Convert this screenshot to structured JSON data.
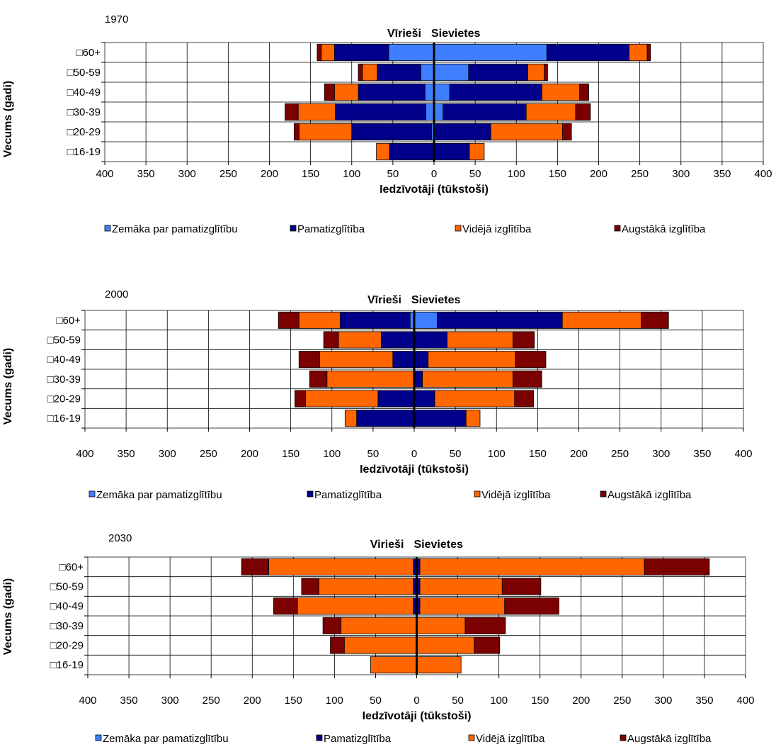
{
  "chart_data": [
    {
      "type": "bar",
      "title": "1970",
      "left_label": "Vīrieši",
      "right_label": "Sievietes",
      "xlabel": "Iedzīvotāji (tūkstoši)",
      "ylabel": "Vecums (gadi)",
      "xlim": [
        -400,
        400
      ],
      "x_ticks": [
        "400",
        "350",
        "300",
        "250",
        "200",
        "150",
        "100",
        "50",
        "0",
        "50",
        "100",
        "150",
        "200",
        "250",
        "300",
        "350",
        "400"
      ],
      "categories": [
        "60+",
        "50-59",
        "40-49",
        "30-39",
        "20-29",
        "16-19"
      ],
      "series": [
        {
          "name": "Zemāka par pamatizglītību",
          "men": [
            55,
            16,
            11,
            10,
            3,
            0
          ],
          "women": [
            137,
            42,
            19,
            11,
            2,
            0
          ]
        },
        {
          "name": "Pamatizglītība",
          "men": [
            66,
            53,
            81,
            110,
            97,
            54
          ],
          "women": [
            100,
            72,
            112,
            101,
            67,
            43
          ]
        },
        {
          "name": "Vidējā izglītība",
          "men": [
            16,
            18,
            29,
            45,
            64,
            16
          ],
          "women": [
            22,
            20,
            46,
            60,
            87,
            18
          ]
        },
        {
          "name": "Augstākā izglītība",
          "men": [
            5,
            5,
            12,
            16,
            6,
            0
          ],
          "women": [
            4,
            4,
            11,
            18,
            11,
            0
          ]
        }
      ]
    },
    {
      "type": "bar",
      "title": "2000",
      "left_label": "Vīrieši",
      "right_label": "Sievietes",
      "xlabel": "Iedzīvotāji (tūkstoši)",
      "ylabel": "Vecums (gadi)",
      "xlim": [
        -400,
        400
      ],
      "x_ticks": [
        "400",
        "350",
        "300",
        "250",
        "200",
        "150",
        "100",
        "50",
        "0",
        "50",
        "100",
        "150",
        "200",
        "250",
        "300",
        "350",
        "400"
      ],
      "categories": [
        "60+",
        "50-59",
        "40-49",
        "30-39",
        "20-29",
        "16-19"
      ],
      "series": [
        {
          "name": "Zemāka par pamatizglītību",
          "men": [
            5,
            0,
            0,
            0,
            0,
            0
          ],
          "women": [
            28,
            0,
            0,
            0,
            0,
            0
          ]
        },
        {
          "name": "Pamatizglītība",
          "men": [
            85,
            40,
            26,
            0,
            44,
            70
          ],
          "women": [
            152,
            40,
            17,
            10,
            25,
            63
          ]
        },
        {
          "name": "Vidējā izglītība",
          "men": [
            50,
            52,
            89,
            106,
            88,
            14
          ],
          "women": [
            96,
            80,
            106,
            110,
            97,
            17
          ]
        },
        {
          "name": "Augstākā izglītība",
          "men": [
            25,
            18,
            25,
            21,
            13,
            0
          ],
          "women": [
            33,
            26,
            37,
            35,
            23,
            0
          ]
        }
      ]
    },
    {
      "type": "bar",
      "title": "2030",
      "left_label": "Virieši",
      "right_label": "Sievietes",
      "xlabel": "Iedzīvotāji (tūkstoši)",
      "ylabel": "Vecums (gadi)",
      "xlim": [
        -400,
        400
      ],
      "x_ticks": [
        "400",
        "350",
        "300",
        "250",
        "200",
        "150",
        "100",
        "50",
        "0",
        "50",
        "100",
        "150",
        "200",
        "250",
        "300",
        "350",
        "400"
      ],
      "categories": [
        "60+",
        "50-59",
        "40-49",
        "30-39",
        "20-29",
        "16-19"
      ],
      "series": [
        {
          "name": "Zemāka par pamatizglītību",
          "men": [
            0,
            0,
            0,
            0,
            0,
            0
          ],
          "women": [
            0,
            0,
            0,
            0,
            0,
            0
          ]
        },
        {
          "name": "Pamatizglītība",
          "men": [
            4,
            4,
            4,
            0,
            0,
            0
          ],
          "women": [
            4,
            4,
            4,
            0,
            0,
            0
          ]
        },
        {
          "name": "Vidējā izglītība",
          "men": [
            176,
            115,
            141,
            92,
            88,
            56
          ],
          "women": [
            273,
            100,
            103,
            59,
            70,
            54
          ]
        },
        {
          "name": "Augstākā izglītība",
          "men": [
            33,
            21,
            29,
            22,
            17,
            0
          ],
          "women": [
            79,
            47,
            66,
            49,
            31,
            0
          ]
        }
      ]
    }
  ],
  "colors": {
    "Zemāka par pamatizglītību": "#3f7fff",
    "Pamatizglītība": "#00008b",
    "Vidējā izglītība": "#ff6600",
    "Augstākā izglītība": "#7b0000"
  },
  "category_marker": "□"
}
